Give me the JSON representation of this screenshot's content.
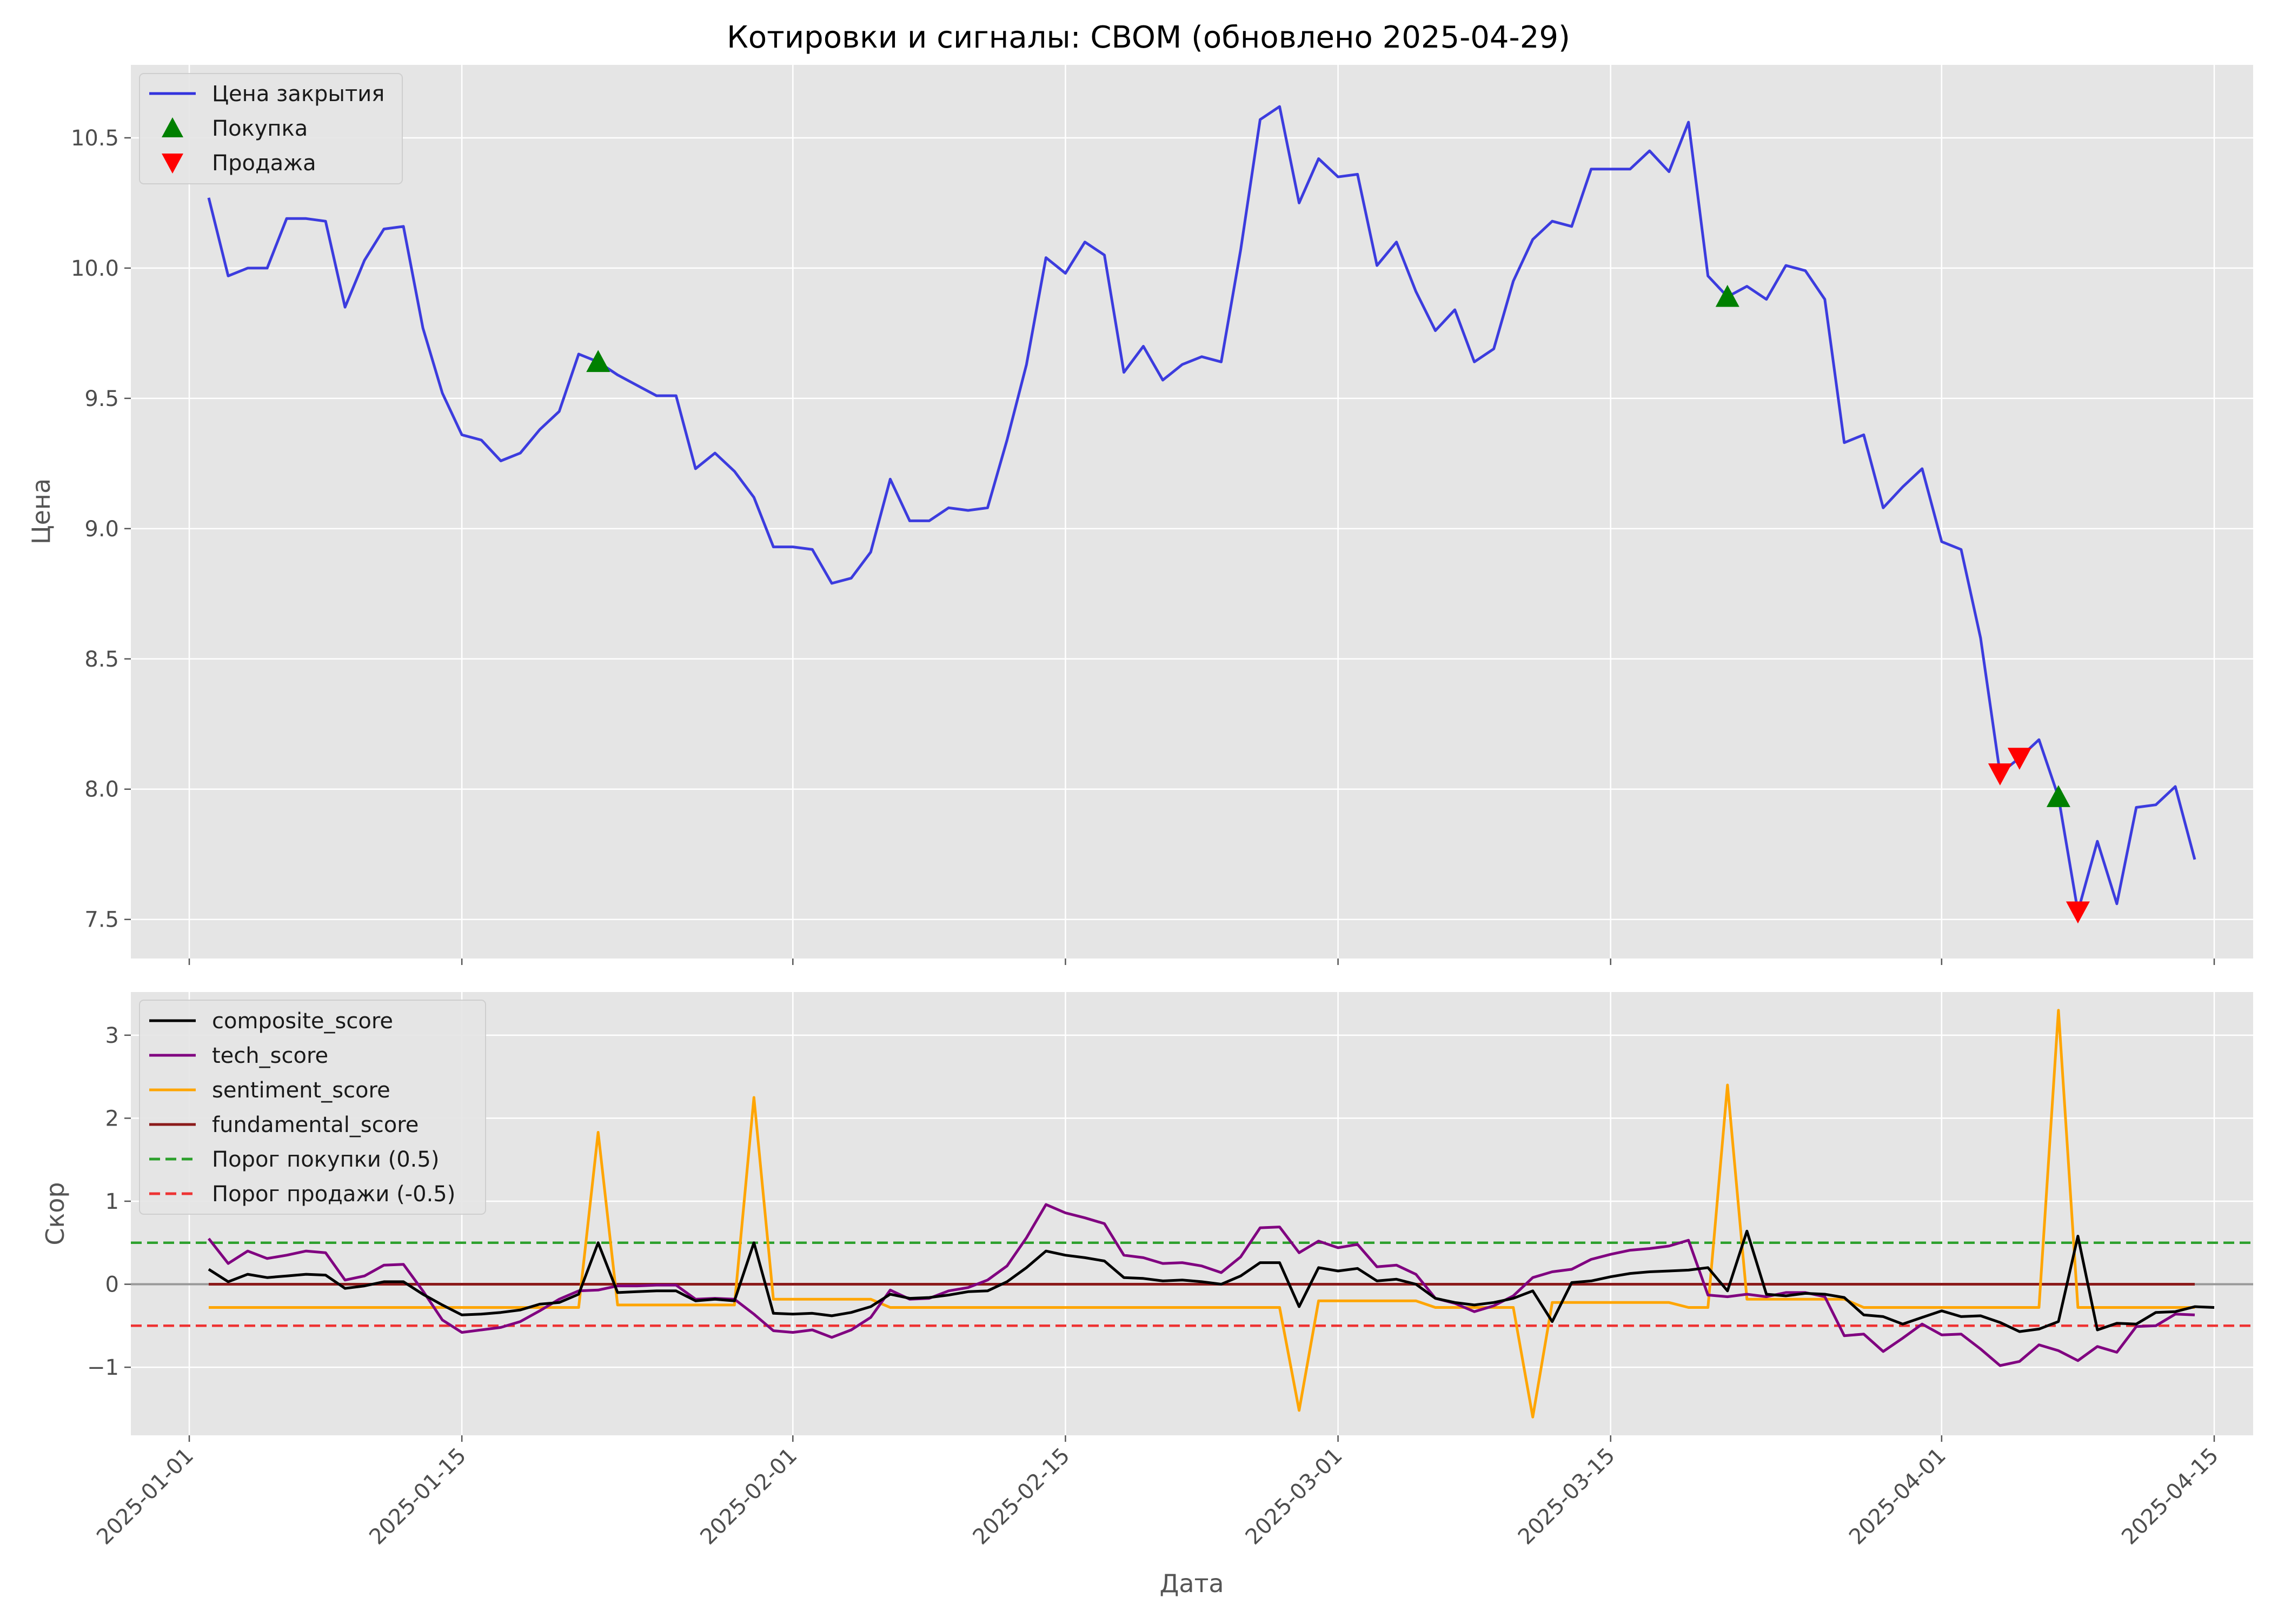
{
  "title": "Котировки и сигналы: CBOM (обновлено 2025-04-29)",
  "chart_data": [
    {
      "type": "line",
      "name": "price-panel",
      "ylabel": "Цена",
      "ylim": [
        7.35,
        10.78
      ],
      "xlim": [
        "2024-12-29",
        "2025-04-17"
      ],
      "yticks": [
        7.5,
        8.0,
        8.5,
        9.0,
        9.5,
        10.0,
        10.5
      ],
      "grid": true,
      "legend_position": "top-left",
      "series": [
        {
          "name": "Цена закрытия",
          "color": "#3333dd",
          "points": [
            [
              "2025-01-02",
              10.27
            ],
            [
              "2025-01-03",
              9.97
            ],
            [
              "2025-01-04",
              10.0
            ],
            [
              "2025-01-05",
              10.0
            ],
            [
              "2025-01-06",
              10.19
            ],
            [
              "2025-01-07",
              10.19
            ],
            [
              "2025-01-08",
              10.18
            ],
            [
              "2025-01-09",
              9.85
            ],
            [
              "2025-01-10",
              10.03
            ],
            [
              "2025-01-11",
              10.15
            ],
            [
              "2025-01-12",
              10.16
            ],
            [
              "2025-01-13",
              9.77
            ],
            [
              "2025-01-14",
              9.52
            ],
            [
              "2025-01-15",
              9.36
            ],
            [
              "2025-01-16",
              9.34
            ],
            [
              "2025-01-17",
              9.26
            ],
            [
              "2025-01-18",
              9.29
            ],
            [
              "2025-01-19",
              9.38
            ],
            [
              "2025-01-20",
              9.45
            ],
            [
              "2025-01-21",
              9.67
            ],
            [
              "2025-01-22",
              9.64
            ],
            [
              "2025-01-23",
              9.59
            ],
            [
              "2025-01-24",
              9.55
            ],
            [
              "2025-01-25",
              9.51
            ],
            [
              "2025-01-26",
              9.51
            ],
            [
              "2025-01-27",
              9.23
            ],
            [
              "2025-01-28",
              9.29
            ],
            [
              "2025-01-29",
              9.22
            ],
            [
              "2025-01-30",
              9.12
            ],
            [
              "2025-01-31",
              8.93
            ],
            [
              "2025-02-01",
              8.93
            ],
            [
              "2025-02-02",
              8.92
            ],
            [
              "2025-02-03",
              8.79
            ],
            [
              "2025-02-04",
              8.81
            ],
            [
              "2025-02-05",
              8.91
            ],
            [
              "2025-02-06",
              9.19
            ],
            [
              "2025-02-07",
              9.03
            ],
            [
              "2025-02-08",
              9.03
            ],
            [
              "2025-02-09",
              9.08
            ],
            [
              "2025-02-10",
              9.07
            ],
            [
              "2025-02-11",
              9.08
            ],
            [
              "2025-02-12",
              9.34
            ],
            [
              "2025-02-13",
              9.63
            ],
            [
              "2025-02-14",
              10.04
            ],
            [
              "2025-02-15",
              9.98
            ],
            [
              "2025-02-16",
              10.1
            ],
            [
              "2025-02-17",
              10.05
            ],
            [
              "2025-02-18",
              9.6
            ],
            [
              "2025-02-19",
              9.7
            ],
            [
              "2025-02-20",
              9.57
            ],
            [
              "2025-02-21",
              9.63
            ],
            [
              "2025-02-22",
              9.66
            ],
            [
              "2025-02-23",
              9.64
            ],
            [
              "2025-02-24",
              10.07
            ],
            [
              "2025-02-25",
              10.57
            ],
            [
              "2025-02-26",
              10.62
            ],
            [
              "2025-02-27",
              10.25
            ],
            [
              "2025-02-28",
              10.42
            ],
            [
              "2025-03-01",
              10.35
            ],
            [
              "2025-03-02",
              10.36
            ],
            [
              "2025-03-03",
              10.01
            ],
            [
              "2025-03-04",
              10.1
            ],
            [
              "2025-03-05",
              9.91
            ],
            [
              "2025-03-06",
              9.76
            ],
            [
              "2025-03-07",
              9.84
            ],
            [
              "2025-03-08",
              9.64
            ],
            [
              "2025-03-09",
              9.69
            ],
            [
              "2025-03-10",
              9.95
            ],
            [
              "2025-03-11",
              10.11
            ],
            [
              "2025-03-12",
              10.18
            ],
            [
              "2025-03-13",
              10.16
            ],
            [
              "2025-03-14",
              10.38
            ],
            [
              "2025-03-15",
              10.38
            ],
            [
              "2025-03-16",
              10.38
            ],
            [
              "2025-03-17",
              10.45
            ],
            [
              "2025-03-18",
              10.37
            ],
            [
              "2025-03-19",
              10.56
            ],
            [
              "2025-03-20",
              9.97
            ],
            [
              "2025-03-21",
              9.89
            ],
            [
              "2025-03-22",
              9.93
            ],
            [
              "2025-03-23",
              9.88
            ],
            [
              "2025-03-24",
              10.01
            ],
            [
              "2025-03-25",
              9.99
            ],
            [
              "2025-03-26",
              9.88
            ],
            [
              "2025-03-27",
              9.33
            ],
            [
              "2025-03-28",
              9.36
            ],
            [
              "2025-03-29",
              9.08
            ],
            [
              "2025-03-30",
              9.16
            ],
            [
              "2025-03-31",
              9.23
            ],
            [
              "2025-04-01",
              8.95
            ],
            [
              "2025-04-02",
              8.92
            ],
            [
              "2025-04-03",
              8.58
            ],
            [
              "2025-04-04",
              8.06
            ],
            [
              "2025-04-05",
              8.12
            ],
            [
              "2025-04-06",
              8.19
            ],
            [
              "2025-04-07",
              7.97
            ],
            [
              "2025-04-08",
              7.53
            ],
            [
              "2025-04-09",
              7.8
            ],
            [
              "2025-04-10",
              7.56
            ],
            [
              "2025-04-11",
              7.93
            ],
            [
              "2025-04-12",
              7.94
            ],
            [
              "2025-04-13",
              8.01
            ],
            [
              "2025-04-14",
              7.73
            ]
          ]
        }
      ],
      "markers": [
        {
          "name": "Покупка",
          "color": "#008000",
          "shape": "triangle-up",
          "points": [
            [
              "2025-01-22",
              9.64
            ],
            [
              "2025-03-21",
              9.89
            ],
            [
              "2025-04-07",
              7.97
            ]
          ]
        },
        {
          "name": "Продажа",
          "color": "#ff0000",
          "shape": "triangle-down",
          "points": [
            [
              "2025-04-04",
              8.06
            ],
            [
              "2025-04-05",
              8.12
            ],
            [
              "2025-04-08",
              7.53
            ]
          ]
        }
      ]
    },
    {
      "type": "line",
      "name": "score-panel",
      "xlabel": "Дата",
      "ylabel": "Скор",
      "ylim": [
        -1.82,
        3.52
      ],
      "yticks": [
        -1,
        0,
        1,
        2,
        3
      ],
      "xticks": [
        "2025-01-01",
        "2025-01-15",
        "2025-02-01",
        "2025-02-15",
        "2025-03-01",
        "2025-03-15",
        "2025-04-01",
        "2025-04-15"
      ],
      "grid": true,
      "legend_position": "top-left",
      "zero_line": 0,
      "thresholds": [
        {
          "name": "Порог покупки (0.5)",
          "value": 0.5,
          "color": "#2ca02c",
          "style": "dashed"
        },
        {
          "name": "Порог продажи (-0.5)",
          "value": -0.5,
          "color": "#ee3333",
          "style": "dashed"
        }
      ],
      "start_date": "2025-01-02",
      "series": [
        {
          "name": "composite_score",
          "color": "#000000",
          "values": [
            0.18,
            0.03,
            0.12,
            0.08,
            0.1,
            0.12,
            0.11,
            -0.05,
            -0.02,
            0.03,
            0.03,
            -0.12,
            -0.25,
            -0.37,
            -0.36,
            -0.34,
            -0.31,
            -0.24,
            -0.22,
            -0.12,
            0.5,
            -0.1,
            -0.09,
            -0.08,
            -0.08,
            -0.2,
            -0.18,
            -0.2,
            0.5,
            -0.35,
            -0.36,
            -0.35,
            -0.38,
            -0.34,
            -0.27,
            -0.12,
            -0.17,
            -0.16,
            -0.13,
            -0.09,
            -0.08,
            0.03,
            0.2,
            0.4,
            0.35,
            0.32,
            0.28,
            0.08,
            0.07,
            0.04,
            0.05,
            0.03,
            0.0,
            0.1,
            0.26,
            0.26,
            -0.27,
            0.2,
            0.16,
            0.19,
            0.04,
            0.06,
            0.0,
            -0.17,
            -0.22,
            -0.25,
            -0.22,
            -0.17,
            -0.08,
            -0.45,
            0.02,
            0.04,
            0.09,
            0.13,
            0.15,
            0.16,
            0.17,
            0.2,
            -0.08,
            0.64,
            -0.12,
            -0.14,
            -0.11,
            -0.12,
            -0.16,
            -0.37,
            -0.39,
            -0.48,
            -0.4,
            -0.32,
            -0.39,
            -0.38,
            -0.46,
            -0.57,
            -0.54,
            -0.45,
            0.58,
            -0.55,
            -0.47,
            -0.48,
            -0.34,
            -0.33,
            -0.27,
            -0.28
          ]
        },
        {
          "name": "tech_score",
          "color": "#800080",
          "values": [
            0.55,
            0.25,
            0.4,
            0.31,
            0.35,
            0.4,
            0.38,
            0.05,
            0.1,
            0.23,
            0.24,
            -0.08,
            -0.43,
            -0.58,
            -0.55,
            -0.52,
            -0.45,
            -0.32,
            -0.18,
            -0.08,
            -0.07,
            -0.02,
            -0.02,
            -0.01,
            -0.01,
            -0.18,
            -0.17,
            -0.18,
            -0.36,
            -0.56,
            -0.58,
            -0.55,
            -0.64,
            -0.55,
            -0.4,
            -0.07,
            -0.18,
            -0.17,
            -0.08,
            -0.04,
            0.05,
            0.22,
            0.56,
            0.96,
            0.86,
            0.8,
            0.73,
            0.35,
            0.32,
            0.25,
            0.26,
            0.22,
            0.14,
            0.33,
            0.68,
            0.69,
            0.38,
            0.52,
            0.44,
            0.48,
            0.21,
            0.23,
            0.12,
            -0.17,
            -0.23,
            -0.33,
            -0.26,
            -0.14,
            0.08,
            0.15,
            0.18,
            0.3,
            0.36,
            0.41,
            0.43,
            0.46,
            0.53,
            -0.13,
            -0.15,
            -0.12,
            -0.15,
            -0.1,
            -0.1,
            -0.15,
            -0.62,
            -0.6,
            -0.81,
            -0.65,
            -0.48,
            -0.61,
            -0.6,
            -0.78,
            -0.98,
            -0.93,
            -0.73,
            -0.8,
            -0.92,
            -0.75,
            -0.82,
            -0.51,
            -0.5,
            -0.36,
            -0.37
          ]
        },
        {
          "name": "sentiment_score",
          "color": "#ffa500",
          "values": [
            -0.28,
            -0.28,
            -0.28,
            -0.28,
            -0.28,
            -0.28,
            -0.28,
            -0.28,
            -0.28,
            -0.28,
            -0.28,
            -0.28,
            -0.28,
            -0.28,
            -0.28,
            -0.28,
            -0.28,
            -0.28,
            -0.28,
            -0.28,
            1.83,
            -0.25,
            -0.25,
            -0.25,
            -0.25,
            -0.25,
            -0.25,
            -0.25,
            2.25,
            -0.18,
            -0.18,
            -0.18,
            -0.18,
            -0.18,
            -0.18,
            -0.28,
            -0.28,
            -0.28,
            -0.28,
            -0.28,
            -0.28,
            -0.28,
            -0.28,
            -0.28,
            -0.28,
            -0.28,
            -0.28,
            -0.28,
            -0.28,
            -0.28,
            -0.28,
            -0.28,
            -0.28,
            -0.28,
            -0.28,
            -0.28,
            -1.52,
            -0.2,
            -0.2,
            -0.2,
            -0.2,
            -0.2,
            -0.2,
            -0.28,
            -0.28,
            -0.28,
            -0.28,
            -0.28,
            -1.6,
            -0.22,
            -0.22,
            -0.22,
            -0.22,
            -0.22,
            -0.22,
            -0.22,
            -0.28,
            -0.28,
            2.4,
            -0.18,
            -0.18,
            -0.18,
            -0.18,
            -0.18,
            -0.18,
            -0.28,
            -0.28,
            -0.28,
            -0.28,
            -0.28,
            -0.28,
            -0.28,
            -0.28,
            -0.28,
            -0.28,
            3.3,
            -0.28,
            -0.28,
            -0.28,
            -0.28,
            -0.28,
            -0.28,
            -0.28
          ]
        },
        {
          "name": "fundamental_score",
          "color": "#8b1a1a",
          "values": [
            0,
            0,
            0,
            0,
            0,
            0,
            0,
            0,
            0,
            0,
            0,
            0,
            0,
            0,
            0,
            0,
            0,
            0,
            0,
            0,
            0,
            0,
            0,
            0,
            0,
            0,
            0,
            0,
            0,
            0,
            0,
            0,
            0,
            0,
            0,
            0,
            0,
            0,
            0,
            0,
            0,
            0,
            0,
            0,
            0,
            0,
            0,
            0,
            0,
            0,
            0,
            0,
            0,
            0,
            0,
            0,
            0,
            0,
            0,
            0,
            0,
            0,
            0,
            0,
            0,
            0,
            0,
            0,
            0,
            0,
            0,
            0,
            0,
            0,
            0,
            0,
            0,
            0,
            0,
            0,
            0,
            0,
            0,
            0,
            0,
            0,
            0,
            0,
            0,
            0,
            0,
            0,
            0,
            0,
            0,
            0,
            0,
            0,
            0,
            0,
            0,
            0,
            0
          ]
        }
      ]
    }
  ]
}
